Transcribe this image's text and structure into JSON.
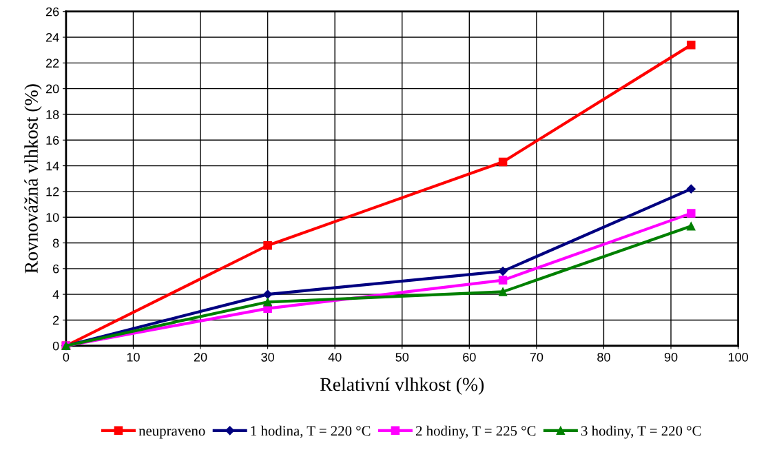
{
  "chart_data": {
    "type": "line",
    "xlabel": "Relativní vlhkost (%)",
    "ylabel": "Rovnovážná vlhkost (%)",
    "x": [
      0,
      30,
      65,
      93
    ],
    "series": [
      {
        "name": "neupraveno",
        "color": "#ff0000",
        "marker": "square",
        "values": [
          0,
          7.8,
          14.3,
          23.4
        ]
      },
      {
        "name": "1 hodina, T = 220 °C",
        "color": "#000080",
        "marker": "diamond",
        "values": [
          0,
          4.0,
          5.8,
          12.2
        ]
      },
      {
        "name": "2 hodiny, T = 225 °C",
        "color": "#ff00ff",
        "marker": "square",
        "values": [
          0,
          2.9,
          5.1,
          10.3
        ]
      },
      {
        "name": "3 hodiny, T = 220 °C",
        "color": "#008000",
        "marker": "triangle",
        "values": [
          0,
          3.4,
          4.2,
          9.3
        ]
      }
    ],
    "xlim": [
      0,
      100
    ],
    "xticks": [
      0,
      10,
      20,
      30,
      40,
      50,
      60,
      70,
      80,
      90,
      100
    ],
    "ylim": [
      0,
      26
    ],
    "yticks": [
      0,
      2,
      4,
      6,
      8,
      10,
      12,
      14,
      16,
      18,
      20,
      22,
      24,
      26
    ],
    "grid": true,
    "legend": "bottom",
    "line_style": "solid"
  }
}
